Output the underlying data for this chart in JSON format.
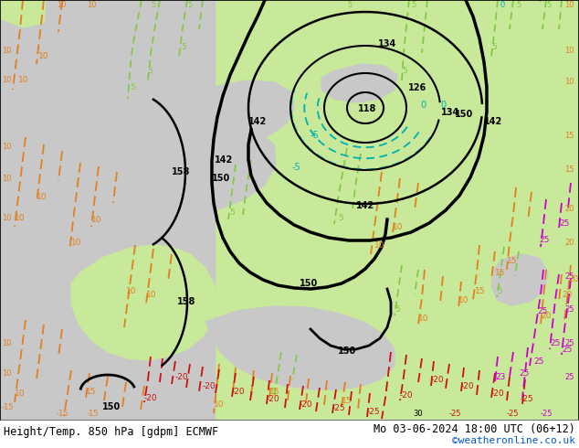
{
  "title_left": "Height/Temp. 850 hPa [gdpm] ECMWF",
  "title_right": "Mo 03-06-2024 18:00 UTC (06+12)",
  "credit": "©weatheronline.co.uk",
  "colors": {
    "ocean_grey": "#c8c8c8",
    "land_green": "#c8e89a",
    "land_grey": "#b0b0b0",
    "height_black": "#000000",
    "temp_cyan": "#00b0b0",
    "temp_green": "#80c840",
    "temp_orange": "#e08020",
    "temp_red": "#cc1010",
    "temp_magenta": "#cc00cc",
    "label_blue": "#0055cc",
    "white": "#ffffff"
  },
  "fig_w": 6.34,
  "fig_h": 4.9,
  "dpi": 100
}
